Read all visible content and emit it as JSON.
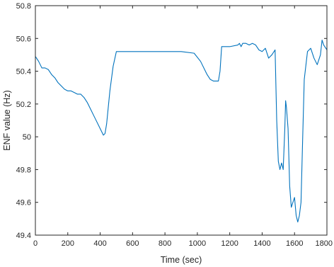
{
  "chart_data": {
    "type": "line",
    "title": "",
    "xlabel": "Time (sec)",
    "ylabel": "ENF value (Hz)",
    "xlim": [
      0,
      1800
    ],
    "ylim": [
      49.4,
      50.8
    ],
    "xticks": [
      0,
      200,
      400,
      600,
      800,
      1000,
      1200,
      1400,
      1600,
      1800
    ],
    "yticks": [
      49.4,
      49.6,
      49.8,
      50,
      50.2,
      50.4,
      50.6,
      50.8
    ],
    "xtick_labels": [
      "0",
      "200",
      "400",
      "600",
      "800",
      "1000",
      "1200",
      "1400",
      "1600",
      "1800"
    ],
    "ytick_labels": [
      "49.4",
      "49.6",
      "49.8",
      "50",
      "50.2",
      "50.4",
      "50.6",
      "50.8"
    ],
    "grid": false,
    "legend": "none",
    "line_color": "#0072bd",
    "series": [
      {
        "x": [
          0,
          20,
          40,
          60,
          80,
          100,
          120,
          140,
          160,
          180,
          200,
          220,
          240,
          260,
          280,
          300,
          320,
          340,
          360,
          380,
          400,
          420,
          430,
          440,
          450,
          460,
          480,
          500,
          520,
          600,
          700,
          800,
          900,
          980,
          1020,
          1060,
          1080,
          1100,
          1120,
          1130,
          1140,
          1150,
          1200,
          1250,
          1260,
          1270,
          1280,
          1300,
          1320,
          1340,
          1360,
          1380,
          1400,
          1420,
          1440,
          1460,
          1480,
          1490,
          1500,
          1510,
          1520,
          1530,
          1540,
          1545,
          1550,
          1560,
          1570,
          1580,
          1590,
          1600,
          1610,
          1620,
          1630,
          1640,
          1650,
          1660,
          1680,
          1700,
          1720,
          1740,
          1760,
          1770,
          1780,
          1800
        ],
        "y": [
          50.49,
          50.46,
          50.42,
          50.42,
          50.41,
          50.38,
          50.36,
          50.33,
          50.31,
          50.29,
          50.28,
          50.28,
          50.27,
          50.26,
          50.26,
          50.24,
          50.21,
          50.17,
          50.13,
          50.09,
          50.05,
          50.01,
          50.02,
          50.08,
          50.18,
          50.28,
          50.43,
          50.52,
          50.52,
          50.52,
          50.52,
          50.52,
          50.52,
          50.51,
          50.46,
          50.38,
          50.35,
          50.34,
          50.34,
          50.34,
          50.4,
          50.55,
          50.55,
          50.56,
          50.57,
          50.55,
          50.57,
          50.57,
          50.56,
          50.57,
          50.56,
          50.53,
          50.52,
          50.54,
          50.48,
          50.5,
          50.53,
          50.1,
          49.85,
          49.8,
          49.84,
          49.8,
          50.05,
          50.22,
          50.18,
          50.05,
          49.7,
          49.57,
          49.6,
          49.63,
          49.52,
          49.48,
          49.52,
          49.6,
          49.98,
          50.35,
          50.52,
          50.54,
          50.48,
          50.44,
          50.5,
          50.59,
          50.56,
          50.53
        ]
      }
    ]
  }
}
